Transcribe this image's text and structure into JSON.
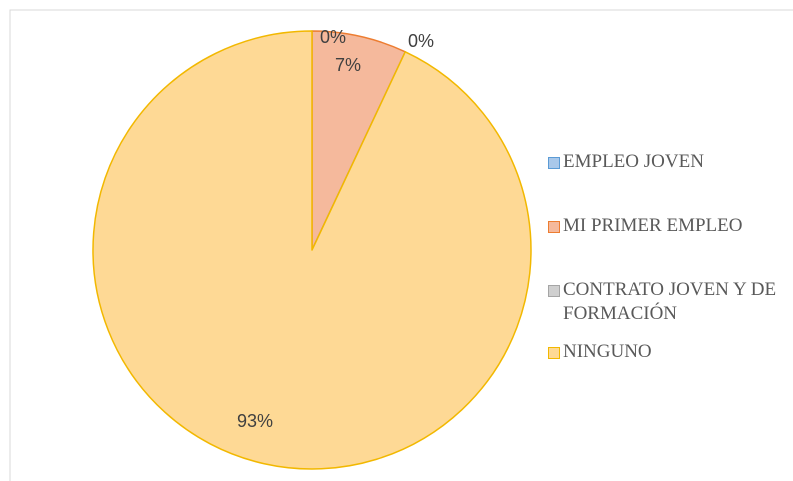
{
  "chart_data": {
    "type": "pie",
    "categories": [
      "EMPLEO JOVEN",
      "MI PRIMER EMPLEO",
      "CONTRATO JOVEN Y DE FORMACIÓN",
      "NINGUNO"
    ],
    "values": [
      0,
      7,
      0,
      93
    ],
    "value_labels": [
      "0%",
      "7%",
      "0%",
      "93%"
    ],
    "colors": [
      "#a9c8ea",
      "#f5b99c",
      "#cfcfcf",
      "#fed995"
    ],
    "edge_colors": [
      "#5b9bd5",
      "#ed7d31",
      "#a5a5a5",
      "#f2b800"
    ],
    "legend": "right"
  }
}
